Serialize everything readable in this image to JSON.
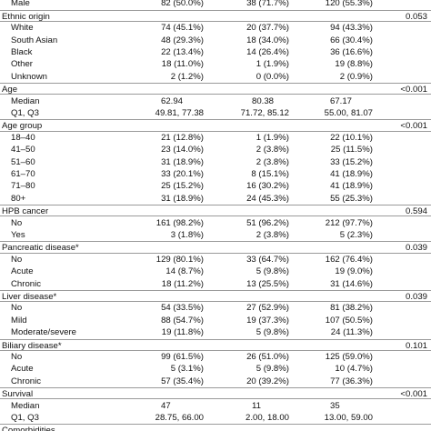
{
  "table": {
    "rows": [
      {
        "label": "Male",
        "cells": [
          "82 (50.0%)",
          "38 (71.7%)",
          "120 (55.3%)"
        ]
      },
      {
        "section": "Ethnic origin",
        "p": "0.053"
      },
      {
        "label": "White",
        "cells": [
          "74 (45.1%)",
          "20 (37.7%)",
          "94 (43.3%)"
        ]
      },
      {
        "label": "South Asian",
        "cells": [
          "48 (29.3%)",
          "18 (34.0%)",
          "66 (30.4%)"
        ]
      },
      {
        "label": "Black",
        "cells": [
          "22 (13.4%)",
          "14 (26.4%)",
          "36 (16.6%)"
        ]
      },
      {
        "label": "Other",
        "cells": [
          "18 (11.0%)",
          "1 (1.9%)",
          "19 (8.8%)"
        ]
      },
      {
        "label": "Unknown",
        "cells": [
          "2 (1.2%)",
          "0 (0.0%)",
          "2 (0.9%)"
        ]
      },
      {
        "section": "Age",
        "p": "<0.001"
      },
      {
        "label": "Median",
        "cells": [
          "62.94",
          "80.38",
          "67.17"
        ]
      },
      {
        "label": "Q1, Q3",
        "cells": [
          "49.81, 77.38",
          "71.72, 85.12",
          "55.00, 81.07"
        ]
      },
      {
        "section": "Age group",
        "p": "<0.001"
      },
      {
        "label": "18–40",
        "cells": [
          "21 (12.8%)",
          "1 (1.9%)",
          "22 (10.1%)"
        ]
      },
      {
        "label": "41–50",
        "cells": [
          "23 (14.0%)",
          "2 (3.8%)",
          "25 (11.5%)"
        ]
      },
      {
        "label": "51–60",
        "cells": [
          "31 (18.9%)",
          "2 (3.8%)",
          "33 (15.2%)"
        ]
      },
      {
        "label": "61–70",
        "cells": [
          "33 (20.1%)",
          "8 (15.1%)",
          "41 (18.9%)"
        ]
      },
      {
        "label": "71–80",
        "cells": [
          "25 (15.2%)",
          "16 (30.2%)",
          "41 (18.9%)"
        ]
      },
      {
        "label": "80+",
        "cells": [
          "31 (18.9%)",
          "24 (45.3%)",
          "55 (25.3%)"
        ]
      },
      {
        "section": "HPB cancer",
        "p": "0.594"
      },
      {
        "label": "No",
        "cells": [
          "161 (98.2%)",
          "51 (96.2%)",
          "212 (97.7%)"
        ]
      },
      {
        "label": "Yes",
        "cells": [
          "3 (1.8%)",
          "2 (3.8%)",
          "5 (2.3%)"
        ]
      },
      {
        "section": "Pancreatic disease*",
        "p": "0.039"
      },
      {
        "label": "No",
        "cells": [
          "129 (80.1%)",
          "33 (64.7%)",
          "162 (76.4%)"
        ]
      },
      {
        "label": "Acute",
        "cells": [
          "14 (8.7%)",
          "5 (9.8%)",
          "19 (9.0%)"
        ]
      },
      {
        "label": "Chronic",
        "cells": [
          "18 (11.2%)",
          "13 (25.5%)",
          "31 (14.6%)"
        ]
      },
      {
        "section": "Liver disease*",
        "p": "0.039"
      },
      {
        "label": "No",
        "cells": [
          "54 (33.5%)",
          "27 (52.9%)",
          "81 (38.2%)"
        ]
      },
      {
        "label": "Mild",
        "cells": [
          "88 (54.7%)",
          "19 (37.3%)",
          "107 (50.5%)"
        ]
      },
      {
        "label": "Moderate/severe",
        "cells": [
          "19 (11.8%)",
          "5 (9.8%)",
          "24 (11.3%)"
        ]
      },
      {
        "section": "Biliary disease*",
        "p": "0.101"
      },
      {
        "label": "No",
        "cells": [
          "99 (61.5%)",
          "26 (51.0%)",
          "125 (59.0%)"
        ]
      },
      {
        "label": "Acute",
        "cells": [
          "5 (3.1%)",
          "5 (9.8%)",
          "10 (4.7%)"
        ]
      },
      {
        "label": "Chronic",
        "cells": [
          "57 (35.4%)",
          "20 (39.2%)",
          "77 (36.3%)"
        ]
      },
      {
        "section": "Survival",
        "p": "<0.001"
      },
      {
        "label": "Median",
        "cells": [
          "47",
          "11",
          "35"
        ]
      },
      {
        "label": "Q1, Q3",
        "cells": [
          "28.75, 66.00",
          "2.00, 18.00",
          "13.00, 59.00"
        ]
      },
      {
        "section": "Comorbidities"
      }
    ]
  }
}
